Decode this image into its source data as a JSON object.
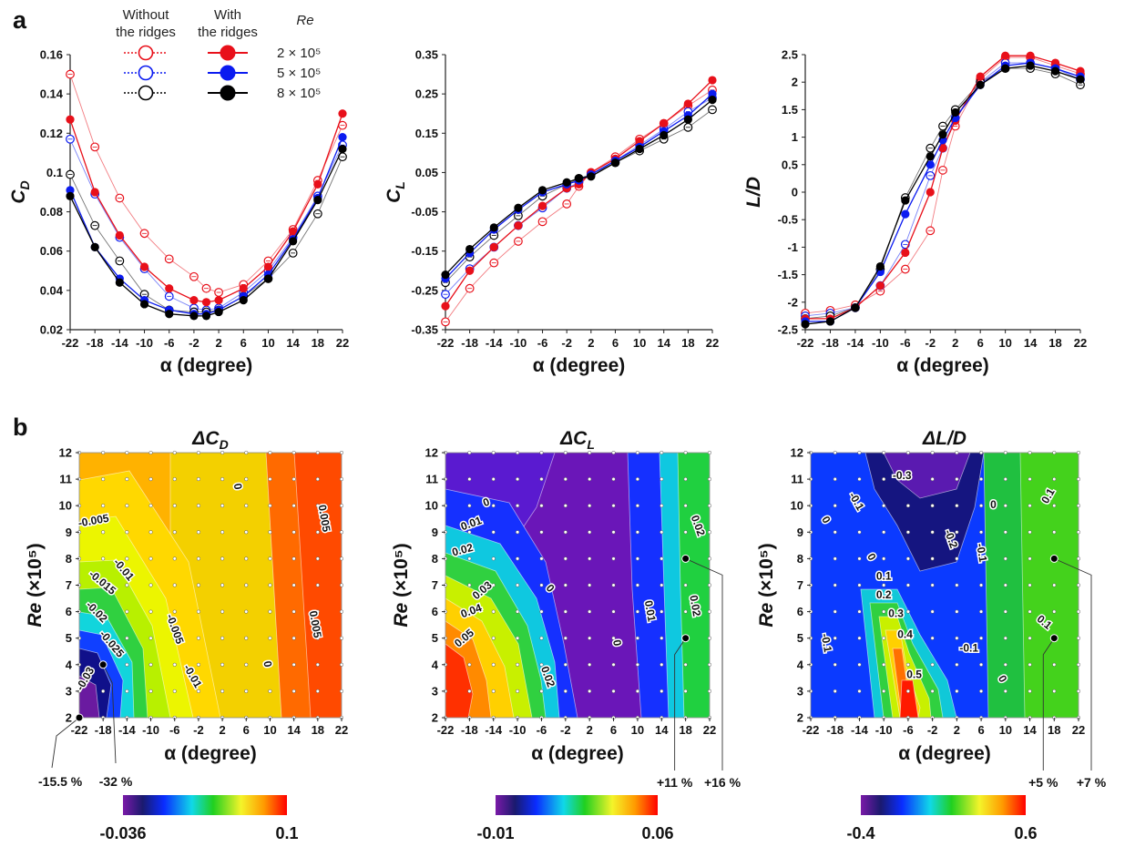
{
  "panel_labels": {
    "a": "a",
    "b": "b"
  },
  "legend": {
    "col_without": [
      "Without",
      "the ridges"
    ],
    "col_with": [
      "With",
      "the ridges"
    ],
    "re_header": "Re",
    "rows": [
      {
        "re": "2 × 10⁵",
        "color": "#e8101a"
      },
      {
        "re": "5 × 10⁵",
        "color": "#0b1bf0"
      },
      {
        "re": "8 × 10⁵",
        "color": "#000000"
      }
    ]
  },
  "colors": {
    "red": "#e8101a",
    "blue": "#0b1bf0",
    "black": "#000000"
  },
  "chart_data": [
    {
      "type": "line",
      "ylabel_main": "C",
      "ylabel_sub": "D",
      "xlabel": "α (degree)",
      "x": [
        -22,
        -18,
        -14,
        -10,
        -6,
        -2,
        0,
        2,
        6,
        10,
        14,
        18,
        22
      ],
      "xticks": [
        -22,
        -18,
        -14,
        -10,
        -6,
        -2,
        2,
        6,
        10,
        14,
        18,
        22
      ],
      "yticks": [
        "0.02",
        "0.04",
        "0.06",
        "0.08",
        "0.1",
        "0.12",
        "0.14",
        "0.16"
      ],
      "ylim": [
        0.02,
        0.16
      ],
      "series": [
        {
          "color": "red",
          "ridges": false,
          "values": [
            0.15,
            0.113,
            0.087,
            0.069,
            0.056,
            0.047,
            0.041,
            0.039,
            0.043,
            0.055,
            0.071,
            0.096,
            0.124
          ]
        },
        {
          "color": "blue",
          "ridges": false,
          "values": [
            0.117,
            0.089,
            0.067,
            0.051,
            0.037,
            0.031,
            0.03,
            0.031,
            0.039,
            0.05,
            0.067,
            0.088,
            0.114
          ]
        },
        {
          "color": "black",
          "ridges": false,
          "values": [
            0.099,
            0.073,
            0.055,
            0.038,
            0.03,
            0.029,
            0.029,
            0.03,
            0.037,
            0.046,
            0.059,
            0.079,
            0.108
          ]
        },
        {
          "color": "red",
          "ridges": true,
          "values": [
            0.127,
            0.09,
            0.068,
            0.052,
            0.041,
            0.035,
            0.034,
            0.035,
            0.041,
            0.052,
            0.07,
            0.094,
            0.13
          ]
        },
        {
          "color": "blue",
          "ridges": true,
          "values": [
            0.091,
            0.062,
            0.046,
            0.035,
            0.03,
            0.028,
            0.028,
            0.03,
            0.037,
            0.048,
            0.066,
            0.087,
            0.118
          ]
        },
        {
          "color": "black",
          "ridges": true,
          "values": [
            0.088,
            0.062,
            0.044,
            0.033,
            0.028,
            0.027,
            0.027,
            0.029,
            0.035,
            0.046,
            0.065,
            0.086,
            0.112
          ]
        }
      ]
    },
    {
      "type": "line",
      "ylabel_main": "C",
      "ylabel_sub": "L",
      "xlabel": "α (degree)",
      "x": [
        -22,
        -18,
        -14,
        -10,
        -6,
        -2,
        0,
        2,
        6,
        10,
        14,
        18,
        22
      ],
      "xticks": [
        -22,
        -18,
        -14,
        -10,
        -6,
        -2,
        2,
        6,
        10,
        14,
        18,
        22
      ],
      "yticks": [
        "-0.35",
        "-0.25",
        "-0.15",
        "-0.05",
        "0.05",
        "0.15",
        "0.25",
        "0.35"
      ],
      "ylim": [
        -0.35,
        0.35
      ],
      "series": [
        {
          "color": "red",
          "ridges": false,
          "values": [
            -0.33,
            -0.245,
            -0.18,
            -0.125,
            -0.075,
            -0.03,
            0.015,
            0.05,
            0.09,
            0.135,
            0.175,
            0.22,
            0.26
          ]
        },
        {
          "color": "blue",
          "ridges": false,
          "values": [
            -0.26,
            -0.195,
            -0.14,
            -0.085,
            -0.04,
            0.01,
            0.025,
            0.045,
            0.08,
            0.12,
            0.16,
            0.205,
            0.24
          ]
        },
        {
          "color": "black",
          "ridges": false,
          "values": [
            -0.23,
            -0.165,
            -0.11,
            -0.06,
            -0.01,
            0.02,
            0.035,
            0.045,
            0.075,
            0.105,
            0.135,
            0.165,
            0.21
          ]
        },
        {
          "color": "red",
          "ridges": true,
          "values": [
            -0.29,
            -0.2,
            -0.14,
            -0.085,
            -0.035,
            0.01,
            0.02,
            0.05,
            0.085,
            0.13,
            0.175,
            0.225,
            0.285
          ]
        },
        {
          "color": "blue",
          "ridges": true,
          "values": [
            -0.22,
            -0.155,
            -0.095,
            -0.045,
            0.0,
            0.02,
            0.03,
            0.045,
            0.08,
            0.115,
            0.155,
            0.195,
            0.25
          ]
        },
        {
          "color": "black",
          "ridges": true,
          "values": [
            -0.21,
            -0.145,
            -0.09,
            -0.04,
            0.005,
            0.025,
            0.035,
            0.04,
            0.075,
            0.11,
            0.145,
            0.185,
            0.235
          ]
        }
      ]
    },
    {
      "type": "line",
      "ylabel_main": "L/D",
      "ylabel_sub": "",
      "xlabel": "α (degree)",
      "x": [
        -22,
        -18,
        -14,
        -10,
        -6,
        -2,
        0,
        2,
        6,
        10,
        14,
        18,
        22
      ],
      "xticks": [
        -22,
        -18,
        -14,
        -10,
        -6,
        -2,
        2,
        6,
        10,
        14,
        18,
        22
      ],
      "yticks": [
        "-2.5",
        "-2",
        "-1.5",
        "-1",
        "-0.5",
        "0",
        "0.5",
        "1",
        "1.5",
        "2",
        "2.5"
      ],
      "ylim": [
        -2.5,
        2.5
      ],
      "series": [
        {
          "color": "red",
          "ridges": false,
          "values": [
            -2.2,
            -2.15,
            -2.05,
            -1.8,
            -1.4,
            -0.7,
            0.4,
            1.2,
            2.05,
            2.45,
            2.45,
            2.3,
            2.15
          ]
        },
        {
          "color": "blue",
          "ridges": false,
          "values": [
            -2.25,
            -2.2,
            -2.1,
            -1.7,
            -0.95,
            0.3,
            0.8,
            1.35,
            2.0,
            2.35,
            2.35,
            2.25,
            2.05
          ]
        },
        {
          "color": "black",
          "ridges": false,
          "values": [
            -2.3,
            -2.25,
            -2.1,
            -1.4,
            -0.1,
            0.8,
            1.2,
            1.5,
            2.0,
            2.25,
            2.25,
            2.15,
            1.95
          ]
        },
        {
          "color": "red",
          "ridges": true,
          "values": [
            -2.3,
            -2.3,
            -2.1,
            -1.7,
            -1.1,
            0.0,
            0.8,
            1.3,
            2.1,
            2.48,
            2.48,
            2.35,
            2.2
          ]
        },
        {
          "color": "blue",
          "ridges": true,
          "values": [
            -2.35,
            -2.35,
            -2.1,
            -1.45,
            -0.4,
            0.5,
            0.95,
            1.35,
            1.95,
            2.3,
            2.35,
            2.25,
            2.1
          ]
        },
        {
          "color": "black",
          "ridges": true,
          "values": [
            -2.4,
            -2.35,
            -2.1,
            -1.35,
            -0.15,
            0.65,
            1.05,
            1.45,
            1.95,
            2.25,
            2.3,
            2.2,
            2.05
          ]
        }
      ]
    },
    {
      "type": "heatmap",
      "title_main": "ΔC",
      "title_sub": "D",
      "xlabel": "α (degree)",
      "ylabel_main": "Re",
      "ylabel_rest": "(×10⁵)",
      "xticks": [
        -22,
        -18,
        -14,
        -10,
        -6,
        -2,
        2,
        6,
        10,
        14,
        18,
        22
      ],
      "yticks": [
        2,
        3,
        4,
        5,
        6,
        7,
        8,
        9,
        10,
        11,
        12
      ],
      "colorbar": {
        "min": -0.036,
        "max": 0.1,
        "min_label": "-0.036",
        "max_label": "0.1"
      },
      "contour_labels": [
        {
          "text": "-0.005",
          "x": -19.5,
          "y": 9.3,
          "rot": -10
        },
        {
          "text": "-0.01",
          "x": -15,
          "y": 7.5,
          "rot": 50
        },
        {
          "text": "-0.015",
          "x": -18.5,
          "y": 7.0,
          "rot": 40
        },
        {
          "text": "-0.02",
          "x": -19.5,
          "y": 5.9,
          "rot": 45
        },
        {
          "text": "-0.025",
          "x": -17,
          "y": 4.7,
          "rot": 50
        },
        {
          "text": "-0.03",
          "x": -20.5,
          "y": 3.4,
          "rot": -60
        },
        {
          "text": "-0.005",
          "x": -6.5,
          "y": 5.3,
          "rot": 70
        },
        {
          "text": "-0.01",
          "x": -3.5,
          "y": 3.5,
          "rot": 60
        },
        {
          "text": "0",
          "x": 4,
          "y": 10.7,
          "rot": 80
        },
        {
          "text": "0",
          "x": 9,
          "y": 4.0,
          "rot": 80
        },
        {
          "text": "0.005",
          "x": 18.5,
          "y": 9.5,
          "rot": 80
        },
        {
          "text": "0.005",
          "x": 17,
          "y": 5.5,
          "rot": 80
        }
      ],
      "markers": [
        {
          "x": -22,
          "y": 2,
          "label": "-15.5 %"
        },
        {
          "x": -18,
          "y": 4,
          "label": "-32 %"
        }
      ]
    },
    {
      "type": "heatmap",
      "title_main": "ΔC",
      "title_sub": "L",
      "xlabel": "α (degree)",
      "ylabel_main": "Re",
      "ylabel_rest": "(×10⁵)",
      "xticks": [
        -22,
        -18,
        -14,
        -10,
        -6,
        -2,
        2,
        6,
        10,
        14,
        18,
        22
      ],
      "yticks": [
        2,
        3,
        4,
        5,
        6,
        7,
        8,
        9,
        10,
        11,
        12
      ],
      "colorbar": {
        "min": -0.01,
        "max": 0.06,
        "min_label": "-0.01",
        "max_label": "0.06"
      },
      "contour_labels": [
        {
          "text": "0",
          "x": -15,
          "y": 10.0,
          "rot": -20
        },
        {
          "text": "0.01",
          "x": -17.5,
          "y": 9.2,
          "rot": -20
        },
        {
          "text": "0.02",
          "x": -19,
          "y": 8.2,
          "rot": -15
        },
        {
          "text": "0.03",
          "x": -15.5,
          "y": 6.7,
          "rot": -40
        },
        {
          "text": "0.04",
          "x": -17.5,
          "y": 5.9,
          "rot": -20
        },
        {
          "text": "0.05",
          "x": -18.5,
          "y": 4.9,
          "rot": -40
        },
        {
          "text": "0",
          "x": -5,
          "y": 6.8,
          "rot": 50
        },
        {
          "text": "0.02",
          "x": -5.5,
          "y": 3.5,
          "rot": 70
        },
        {
          "text": "0",
          "x": 6,
          "y": 4.8,
          "rot": 80
        },
        {
          "text": "0.01",
          "x": 11.5,
          "y": 6.0,
          "rot": 80
        },
        {
          "text": "0.02",
          "x": 19,
          "y": 6.2,
          "rot": 80
        },
        {
          "text": "0.02",
          "x": 19.5,
          "y": 9.2,
          "rot": 70
        }
      ],
      "markers": [
        {
          "x": 18,
          "y": 5,
          "label": "+11 %"
        },
        {
          "x": 18,
          "y": 8,
          "label": "+16 %"
        }
      ]
    },
    {
      "type": "heatmap",
      "title_main": "ΔL/D",
      "title_sub": "",
      "xlabel": "α (degree)",
      "ylabel_main": "Re",
      "ylabel_rest": "(×10⁵)",
      "xticks": [
        -22,
        -18,
        -14,
        -10,
        -6,
        -2,
        2,
        6,
        10,
        14,
        18,
        22
      ],
      "yticks": [
        2,
        3,
        4,
        5,
        6,
        7,
        8,
        9,
        10,
        11,
        12
      ],
      "colorbar": {
        "min": -0.4,
        "max": 0.6,
        "min_label": "-0.4",
        "max_label": "0.6"
      },
      "contour_labels": [
        {
          "text": "-0.3",
          "x": -7,
          "y": 11.0,
          "rot": 0
        },
        {
          "text": "-0.1",
          "x": -15,
          "y": 10.1,
          "rot": 60
        },
        {
          "text": "0",
          "x": -20,
          "y": 9.4,
          "rot": 60
        },
        {
          "text": "0",
          "x": -12.5,
          "y": 8.0,
          "rot": 60
        },
        {
          "text": "0.1",
          "x": -10,
          "y": 7.2,
          "rot": 0
        },
        {
          "text": "0.2",
          "x": -10,
          "y": 6.5,
          "rot": 0
        },
        {
          "text": "0.3",
          "x": -8,
          "y": 5.8,
          "rot": 0
        },
        {
          "text": "0.4",
          "x": -6.5,
          "y": 5.0,
          "rot": 0
        },
        {
          "text": "0.5",
          "x": -5,
          "y": 3.5,
          "rot": 0
        },
        {
          "text": "-0.1",
          "x": -20,
          "y": 4.8,
          "rot": 80
        },
        {
          "text": "-0.2",
          "x": 0.5,
          "y": 8.7,
          "rot": 70
        },
        {
          "text": "-0.1",
          "x": 5.5,
          "y": 8.2,
          "rot": 80
        },
        {
          "text": "-0.1",
          "x": 4,
          "y": 4.5,
          "rot": 0
        },
        {
          "text": "0",
          "x": 8,
          "y": 9.9,
          "rot": 0
        },
        {
          "text": "0",
          "x": 9,
          "y": 3.4,
          "rot": 60
        },
        {
          "text": "0.1",
          "x": 17.5,
          "y": 10.3,
          "rot": -60
        },
        {
          "text": "0.1",
          "x": 16,
          "y": 5.5,
          "rot": 40
        }
      ],
      "markers": [
        {
          "x": 18,
          "y": 5,
          "label": "+5 %"
        },
        {
          "x": 18,
          "y": 8,
          "label": "+7 %"
        }
      ]
    }
  ]
}
